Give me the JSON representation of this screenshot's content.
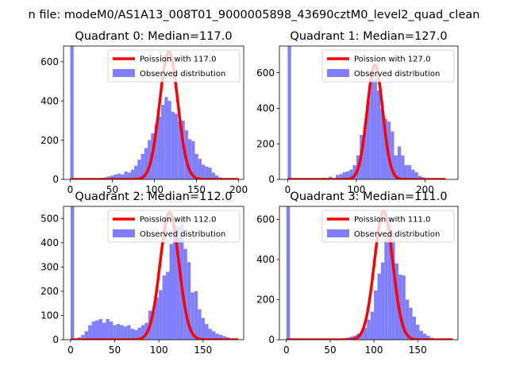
{
  "figure": {
    "suptitle": "n file: modeM0/AS1A13_008T01_9000005898_43690cztM0_level2_quad_clean",
    "colors": {
      "histogram": "#8080ff",
      "poisson": "#ff0000",
      "axes": "#000000"
    }
  },
  "chart_data": [
    {
      "type": "bar",
      "title": "Quadrant 0: Median=117.0",
      "xlim": [
        -8,
        206
      ],
      "ylim": [
        0,
        680
      ],
      "xticks": [
        0,
        50,
        100,
        150,
        200
      ],
      "yticks": [
        0,
        200,
        400,
        600
      ],
      "legend": [
        "Poission with 117.0",
        "Observed distribution"
      ],
      "legend_loc": "upper right",
      "bin_width": 4,
      "hist": [
        [
          0,
          680
        ],
        [
          4,
          0
        ],
        [
          8,
          0
        ],
        [
          12,
          0
        ],
        [
          16,
          0
        ],
        [
          20,
          0
        ],
        [
          24,
          0
        ],
        [
          28,
          0
        ],
        [
          32,
          5
        ],
        [
          36,
          8
        ],
        [
          40,
          10
        ],
        [
          44,
          15
        ],
        [
          48,
          20
        ],
        [
          52,
          25
        ],
        [
          56,
          30
        ],
        [
          60,
          25
        ],
        [
          64,
          40
        ],
        [
          68,
          35
        ],
        [
          72,
          50
        ],
        [
          76,
          70
        ],
        [
          80,
          100
        ],
        [
          84,
          130
        ],
        [
          88,
          160
        ],
        [
          92,
          200
        ],
        [
          96,
          235
        ],
        [
          100,
          280
        ],
        [
          104,
          320
        ],
        [
          108,
          380
        ],
        [
          112,
          420
        ],
        [
          116,
          400
        ],
        [
          120,
          345
        ],
        [
          124,
          335
        ],
        [
          128,
          295
        ],
        [
          132,
          300
        ],
        [
          136,
          250
        ],
        [
          140,
          205
        ],
        [
          144,
          195
        ],
        [
          148,
          130
        ],
        [
          152,
          105
        ],
        [
          156,
          75
        ],
        [
          160,
          65
        ],
        [
          164,
          60
        ],
        [
          168,
          35
        ],
        [
          172,
          20
        ],
        [
          176,
          10
        ],
        [
          180,
          5
        ]
      ],
      "poisson": {
        "name": "Poission with 117.0",
        "mean": 117,
        "peak": 650,
        "sigma": 10.8,
        "xrange": [
          0,
          200
        ]
      }
    },
    {
      "type": "bar",
      "title": "Quadrant 1: Median=127.0",
      "xlim": [
        -12,
        248
      ],
      "ylim": [
        0,
        750
      ],
      "xticks": [
        0,
        100,
        200
      ],
      "yticks": [
        0,
        200,
        400,
        600
      ],
      "legend": [
        "Poission with 127.0",
        "Observed distribution"
      ],
      "legend_loc": "upper right",
      "bin_width": 5,
      "hist": [
        [
          0,
          750
        ],
        [
          5,
          0
        ],
        [
          40,
          5
        ],
        [
          50,
          8
        ],
        [
          60,
          15
        ],
        [
          70,
          25
        ],
        [
          75,
          30
        ],
        [
          80,
          40
        ],
        [
          85,
          45
        ],
        [
          90,
          55
        ],
        [
          95,
          80
        ],
        [
          100,
          135
        ],
        [
          105,
          250
        ],
        [
          110,
          290
        ],
        [
          115,
          440
        ],
        [
          120,
          560
        ],
        [
          125,
          570
        ],
        [
          130,
          500
        ],
        [
          135,
          395
        ],
        [
          140,
          340
        ],
        [
          145,
          325
        ],
        [
          150,
          270
        ],
        [
          155,
          135
        ],
        [
          160,
          185
        ],
        [
          165,
          135
        ],
        [
          170,
          80
        ],
        [
          175,
          80
        ],
        [
          180,
          55
        ],
        [
          185,
          40
        ],
        [
          190,
          20
        ],
        [
          195,
          12
        ],
        [
          200,
          5
        ]
      ],
      "poisson": {
        "name": "Poission with 127.0",
        "mean": 127,
        "peak": 645,
        "sigma": 11.3,
        "xrange": [
          0,
          230
        ]
      }
    },
    {
      "type": "bar",
      "title": "Quadrant 2: Median=112.0",
      "xlim": [
        -8,
        196
      ],
      "ylim": [
        0,
        550
      ],
      "xticks": [
        0,
        50,
        100,
        150
      ],
      "yticks": [
        0,
        100,
        200,
        300,
        400,
        500
      ],
      "legend": [
        "Poission with 112.0",
        "Observed distribution"
      ],
      "legend_loc": "upper right",
      "bin_width": 4,
      "hist": [
        [
          0,
          550
        ],
        [
          4,
          0
        ],
        [
          8,
          10
        ],
        [
          12,
          20
        ],
        [
          16,
          35
        ],
        [
          20,
          60
        ],
        [
          24,
          75
        ],
        [
          28,
          80
        ],
        [
          32,
          85
        ],
        [
          36,
          70
        ],
        [
          40,
          85
        ],
        [
          44,
          75
        ],
        [
          48,
          60
        ],
        [
          52,
          65
        ],
        [
          56,
          60
        ],
        [
          60,
          55
        ],
        [
          64,
          60
        ],
        [
          68,
          45
        ],
        [
          72,
          40
        ],
        [
          76,
          50
        ],
        [
          80,
          60
        ],
        [
          84,
          70
        ],
        [
          88,
          120
        ],
        [
          92,
          115
        ],
        [
          96,
          175
        ],
        [
          100,
          205
        ],
        [
          104,
          265
        ],
        [
          108,
          280
        ],
        [
          112,
          395
        ],
        [
          116,
          460
        ],
        [
          120,
          470
        ],
        [
          124,
          505
        ],
        [
          128,
          375
        ],
        [
          132,
          320
        ],
        [
          136,
          195
        ],
        [
          140,
          200
        ],
        [
          144,
          125
        ],
        [
          148,
          90
        ],
        [
          152,
          65
        ],
        [
          156,
          45
        ],
        [
          160,
          35
        ],
        [
          164,
          25
        ],
        [
          168,
          20
        ],
        [
          172,
          15
        ],
        [
          176,
          10
        ],
        [
          180,
          5
        ]
      ],
      "poisson": {
        "name": "Poission with 112.0",
        "mean": 112,
        "peak": 525,
        "sigma": 10.6,
        "xrange": [
          0,
          190
        ]
      }
    },
    {
      "type": "bar",
      "title": "Quadrant 3: Median=111.0",
      "xlim": [
        -8,
        196
      ],
      "ylim": [
        0,
        665
      ],
      "xticks": [
        0,
        50,
        100,
        150
      ],
      "yticks": [
        0,
        200,
        400,
        600
      ],
      "legend": [
        "Poission with 111.0",
        "Observed distribution"
      ],
      "legend_loc": "upper right",
      "bin_width": 4,
      "hist": [
        [
          0,
          665
        ],
        [
          4,
          0
        ],
        [
          60,
          5
        ],
        [
          64,
          8
        ],
        [
          68,
          10
        ],
        [
          72,
          15
        ],
        [
          76,
          20
        ],
        [
          80,
          30
        ],
        [
          84,
          40
        ],
        [
          88,
          60
        ],
        [
          92,
          100
        ],
        [
          96,
          140
        ],
        [
          100,
          245
        ],
        [
          104,
          330
        ],
        [
          108,
          385
        ],
        [
          112,
          510
        ],
        [
          116,
          600
        ],
        [
          120,
          540
        ],
        [
          124,
          380
        ],
        [
          128,
          325
        ],
        [
          132,
          320
        ],
        [
          136,
          200
        ],
        [
          140,
          160
        ],
        [
          144,
          115
        ],
        [
          148,
          75
        ],
        [
          152,
          45
        ],
        [
          156,
          30
        ],
        [
          160,
          20
        ],
        [
          164,
          10
        ],
        [
          168,
          5
        ]
      ],
      "poisson": {
        "name": "Poission with 111.0",
        "mean": 111,
        "peak": 640,
        "sigma": 10.5,
        "xrange": [
          0,
          190
        ]
      }
    }
  ]
}
